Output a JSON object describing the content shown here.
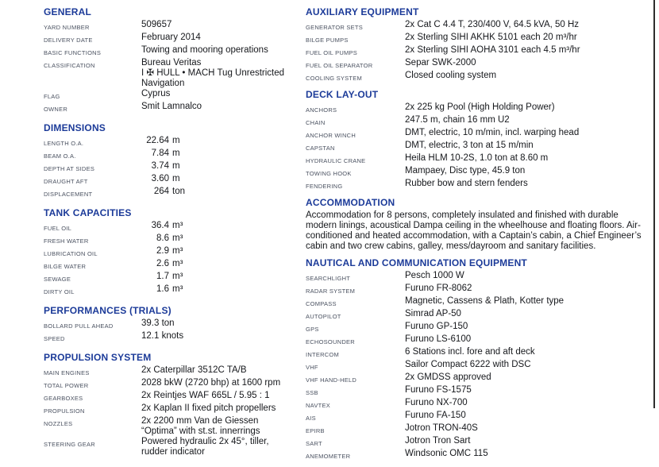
{
  "theme": {
    "header_color": "#1c3b99",
    "label_color": "#4a5160",
    "value_color": "#16181c",
    "edge_color": "#2d2d2d"
  },
  "columns": {
    "left": {
      "sections": [
        {
          "title": "GENERAL",
          "rows": [
            {
              "label": "YARD NUMBER",
              "value": "509657"
            },
            {
              "label": "DELIVERY DATE",
              "value": "February 2014"
            },
            {
              "label": "BASIC FUNCTIONS",
              "value": "Towing and mooring operations"
            },
            {
              "label": "CLASSIFICATION",
              "value": "Bureau Veritas\nI ✠ HULL • MACH Tug Unrestricted\nNavigation"
            },
            {
              "label": "FLAG",
              "value": "Cyprus"
            },
            {
              "label": "OWNER",
              "value": "Smit Lamnalco"
            }
          ]
        },
        {
          "title": "DIMENSIONS",
          "rows": [
            {
              "label": "LENGTH O.A.",
              "num": "22.64",
              "unit": "m"
            },
            {
              "label": "BEAM O.A.",
              "num": "7.84",
              "unit": "m"
            },
            {
              "label": "DEPTH AT SIDES",
              "num": "3.74",
              "unit": "m"
            },
            {
              "label": "DRAUGHT AFT",
              "num": "3.60",
              "unit": "m"
            },
            {
              "label": "DISPLACEMENT",
              "num": "264",
              "unit": "ton"
            }
          ]
        },
        {
          "title": "TANK CAPACITIES",
          "rows": [
            {
              "label": "FUEL OIL",
              "num": "36.4",
              "unit": "m³"
            },
            {
              "label": "FRESH WATER",
              "num": "8.6",
              "unit": "m³"
            },
            {
              "label": "LUBRICATION OIL",
              "num": "2.9",
              "unit": "m³"
            },
            {
              "label": "BILGE WATER",
              "num": "2.6",
              "unit": "m³"
            },
            {
              "label": "SEWAGE",
              "num": "1.7",
              "unit": "m³"
            },
            {
              "label": "DIRTY OIL",
              "num": "1.6",
              "unit": "m³"
            }
          ]
        },
        {
          "title": "PERFORMANCES (TRIALS)",
          "rows": [
            {
              "label": "BOLLARD PULL AHEAD",
              "value": "39.3 ton"
            },
            {
              "label": "SPEED",
              "value": "12.1 knots"
            }
          ]
        },
        {
          "title": "PROPULSION SYSTEM",
          "rows": [
            {
              "label": "MAIN ENGINES",
              "value": "2x Caterpillar 3512C TA/B"
            },
            {
              "label": "TOTAL POWER",
              "value": "2028 bkW (2720 bhp) at 1600 rpm"
            },
            {
              "label": "GEARBOXES",
              "value": "2x Reintjes WAF 665L / 5.95 : 1"
            },
            {
              "label": "PROPULSION",
              "value": "2x Kaplan II fixed pitch propellers"
            },
            {
              "label": "NOZZLES",
              "value": "2x 2200 mm Van de Giessen\n“Optima” with st.st. innerrings"
            },
            {
              "label": "STEERING GEAR",
              "value": "Powered hydraulic 2x 45°, tiller,\nrudder indicator"
            }
          ]
        }
      ]
    },
    "right": {
      "sections": [
        {
          "title": "AUXILIARY EQUIPMENT",
          "rows": [
            {
              "label": "GENERATOR SETS",
              "value": "2x Cat C 4.4 T, 230/400 V, 64.5 kVA, 50 Hz"
            },
            {
              "label": "BILGE PUMPS",
              "value": "2x Sterling SIHI AKHK 5101 each 20 m³/hr"
            },
            {
              "label": "FUEL OIL PUMPS",
              "value": "2x Sterling SIHI AOHA 3101 each 4.5 m³/hr"
            },
            {
              "label": "FUEL OIL SEPARATOR",
              "value": "Separ SWK-2000"
            },
            {
              "label": "COOLING SYSTEM",
              "value": "Closed cooling system"
            }
          ]
        },
        {
          "title": "DECK LAY-OUT",
          "rows": [
            {
              "label": "ANCHORS",
              "value": "2x 225 kg Pool (High Holding Power)"
            },
            {
              "label": "CHAIN",
              "value": "247.5 m, chain 16 mm U2"
            },
            {
              "label": "ANCHOR WINCH",
              "value": "DMT, electric, 10 m/min, incl. warping head"
            },
            {
              "label": "CAPSTAN",
              "value": "DMT, electric, 3 ton at 15 m/min"
            },
            {
              "label": "HYDRAULIC CRANE",
              "value": "Heila HLM 10-2S, 1.0 ton at 8.60 m"
            },
            {
              "label": "TOWING HOOK",
              "value": "Mampaey, Disc type, 45.9 ton"
            },
            {
              "label": "FENDERING",
              "value": "Rubber bow and stern fenders"
            }
          ]
        },
        {
          "title": "ACCOMMODATION",
          "paragraph": "Accommodation for 8 persons, completely insulated and finished with durable modern linings, acoustical Dampa ceiling in the wheelhouse and floating floors. Air-conditioned and heated accommodation, with a Captain’s cabin, a Chief Engineer’s cabin and two crew cabins, galley, mess/dayroom and sanitary facilities."
        },
        {
          "title": "NAUTICAL AND COMMUNICATION EQUIPMENT",
          "rows": [
            {
              "label": "SEARCHLIGHT",
              "value": "Pesch 1000 W"
            },
            {
              "label": "RADAR SYSTEM",
              "value": "Furuno FR-8062"
            },
            {
              "label": "COMPASS",
              "value": "Magnetic, Cassens & Plath, Kotter type"
            },
            {
              "label": "AUTOPILOT",
              "value": "Simrad AP-50"
            },
            {
              "label": "GPS",
              "value": "Furuno GP-150"
            },
            {
              "label": "ECHOSOUNDER",
              "value": "Furuno LS-6100"
            },
            {
              "label": "INTERCOM",
              "value": "6 Stations incl. fore and aft deck"
            },
            {
              "label": "VHF",
              "value": "Sailor Compact 6222 with DSC"
            },
            {
              "label": "VHF HAND-HELD",
              "value": "2x GMDSS approved"
            },
            {
              "label": "SSB",
              "value": "Furuno FS-1575"
            },
            {
              "label": "NAVTEX",
              "value": "Furuno NX-700"
            },
            {
              "label": "AIS",
              "value": "Furuno FA-150"
            },
            {
              "label": "EPIRB",
              "value": "Jotron TRON-40S"
            },
            {
              "label": "SART",
              "value": "Jotron Tron Sart"
            },
            {
              "label": "ANEMOMETER",
              "value": "Windsonic OMC 115"
            }
          ]
        }
      ]
    }
  }
}
